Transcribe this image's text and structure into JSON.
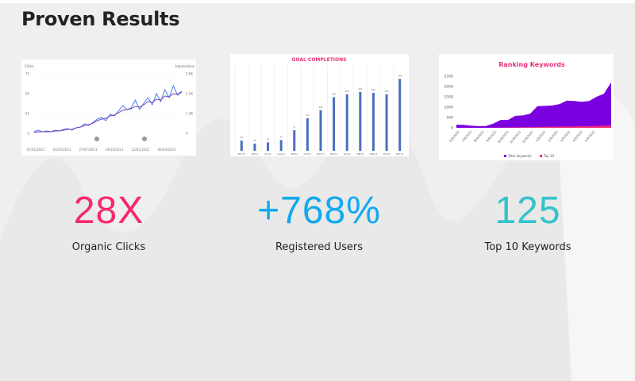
{
  "page_title": "Proven Results",
  "colors": {
    "pink": "#f7296b",
    "blue": "#12a9ef",
    "teal": "#34c3cb"
  },
  "stats": [
    {
      "value": "28X",
      "label": "Organic Clicks",
      "color": "#f7296b"
    },
    {
      "value": "+768%",
      "label": "Registered Users",
      "color": "#12a9ef"
    },
    {
      "value": "125",
      "label": "Top 10 Keywords",
      "color": "#34c3cb"
    }
  ],
  "chart_data": [
    {
      "type": "line",
      "title": "",
      "ylabel": "Clicks",
      "y2label": "Impressions",
      "yticks": [
        "0",
        "25",
        "50",
        "75"
      ],
      "y2ticks": [
        "0",
        "1.3K",
        "2.5K",
        "3.8K"
      ],
      "ylim": [
        0,
        75
      ],
      "xticks": [
        "07/02/2021",
        "03/05/2021",
        "27/07/2021",
        "19/10/2021",
        "12/01/2022",
        "06/04/2022"
      ],
      "series": [
        {
          "name": "Clicks",
          "color": "#4a7cf0",
          "values": [
            2,
            4,
            2,
            3,
            2,
            4,
            3,
            5,
            6,
            4,
            7,
            8,
            12,
            10,
            14,
            18,
            20,
            16,
            24,
            22,
            28,
            35,
            30,
            32,
            42,
            30,
            38,
            45,
            36,
            50,
            40,
            55,
            45,
            60,
            48,
            52
          ]
        },
        {
          "name": "Impressions",
          "color": "#7b3fb5",
          "values": [
            1,
            2,
            2,
            2,
            2,
            3,
            3,
            4,
            5,
            5,
            7,
            8,
            10,
            11,
            13,
            16,
            18,
            19,
            22,
            23,
            26,
            29,
            30,
            31,
            34,
            33,
            36,
            40,
            39,
            43,
            42,
            47,
            46,
            50,
            49,
            53
          ]
        }
      ]
    },
    {
      "type": "bar",
      "title": "GOAL COMPLETIONS",
      "categories": [
        "MAY'21",
        "JUN'21",
        "JUL'21",
        "AUG'21",
        "SEP'21",
        "OCT'21",
        "NOV'21",
        "DEC'21",
        "JAN'22",
        "FEB'22",
        "MAR'22",
        "APR'22",
        "MAY'22"
      ],
      "values": [
        35,
        25,
        29,
        37,
        71,
        112,
        140,
        185,
        195,
        203,
        200,
        195,
        248
      ],
      "color": "#4a6fbf"
    },
    {
      "type": "area",
      "title": "Ranking Keywords",
      "yticks": [
        "0",
        "500",
        "1000",
        "1500",
        "2000",
        "2500"
      ],
      "ylim": [
        0,
        2500
      ],
      "xticks": [
        "6/9/2021",
        "7/9/2021",
        "8/9/2021",
        "9/9/2021",
        "10/9/2021",
        "11/9/2021",
        "12/9/2021",
        "1/9/2022",
        "2/9/2022",
        "3/9/2022",
        "4/9/2022",
        "5/9/2022"
      ],
      "series": [
        {
          "name": "Total keywords",
          "color": "#7b00e0",
          "values": [
            150,
            140,
            100,
            80,
            90,
            200,
            380,
            380,
            580,
            600,
            680,
            1050,
            1060,
            1080,
            1150,
            1320,
            1300,
            1260,
            1300,
            1500,
            1650,
            2200
          ]
        },
        {
          "name": "Top 10",
          "color": "#f0287a",
          "values": [
            0,
            0,
            0,
            0,
            0,
            5,
            10,
            15,
            20,
            25,
            30,
            40,
            50,
            55,
            60,
            65,
            70,
            75,
            80,
            90,
            100,
            120
          ]
        }
      ]
    }
  ]
}
